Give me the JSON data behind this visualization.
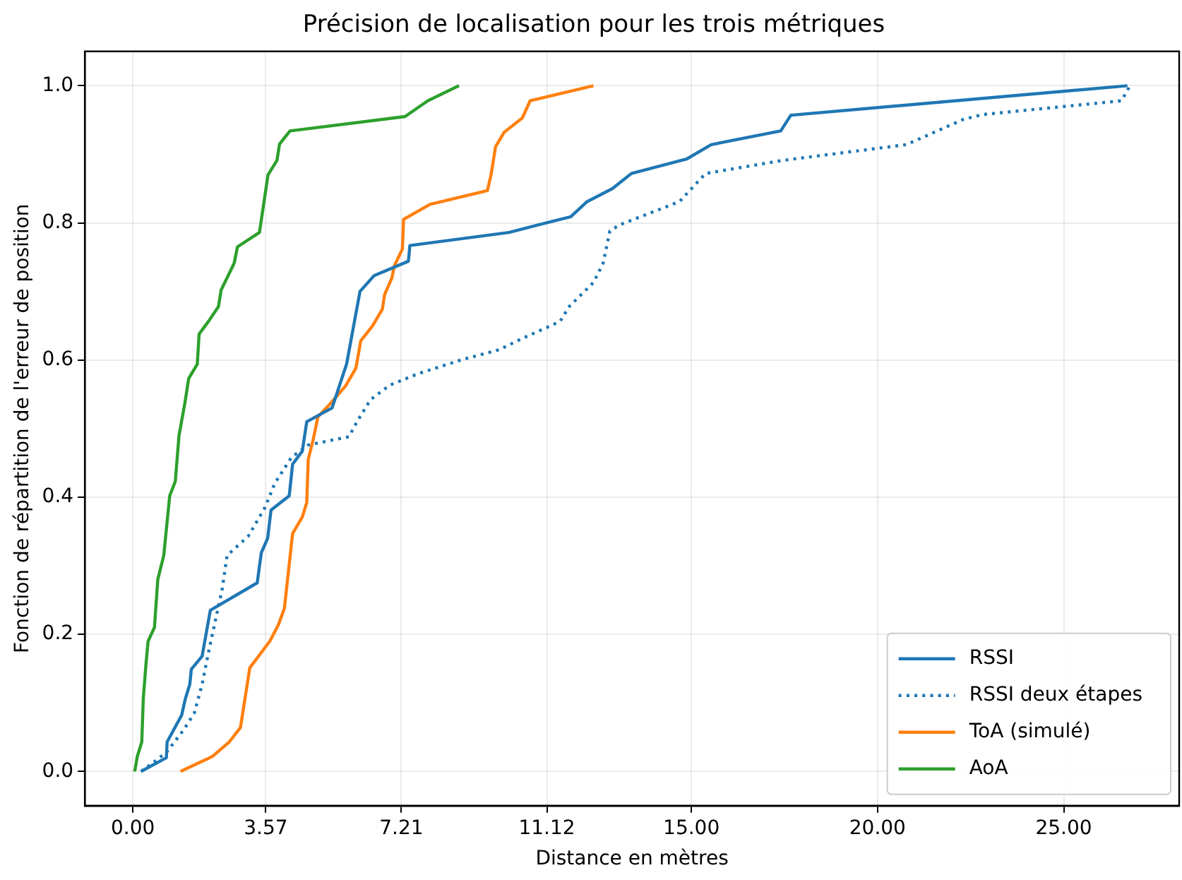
{
  "chart_data": {
    "type": "line",
    "title": "Précision de localisation pour les trois métriques",
    "xlabel": "Distance en mètres",
    "ylabel": "Fonction de répartition de l'erreur de position",
    "xlim": [
      -1.29,
      28.1
    ],
    "ylim": [
      -0.05,
      1.05
    ],
    "xticks": [
      {
        "value": 0,
        "label": "0.00"
      },
      3.57,
      7.21,
      11.12,
      {
        "value": 15,
        "label": "15.00"
      },
      {
        "value": 20,
        "label": "20.00"
      },
      {
        "value": 25,
        "label": "25.00"
      }
    ],
    "yticks": [
      {
        "value": 0,
        "label": "0.0"
      },
      0.2,
      0.4,
      0.6,
      0.8,
      {
        "value": 1,
        "label": "1.0"
      }
    ],
    "grid": true,
    "legend": "bottom right",
    "marker": "none",
    "series": [
      {
        "name": "RSSI",
        "color": "#1f77b4",
        "line_style": "solid",
        "x": [
          0.22,
          0.9,
          0.92,
          1.31,
          1.41,
          1.53,
          1.57,
          1.86,
          2.08,
          3.34,
          3.45,
          3.62,
          3.71,
          4.2,
          4.29,
          4.55,
          4.67,
          5.35,
          5.74,
          6.1,
          6.48,
          7.4,
          7.44,
          10.1,
          11.76,
          12.2,
          12.88,
          13.39,
          14.87,
          15.53,
          17.4,
          17.67,
          26.71
        ],
        "values": [
          0,
          0.02,
          0.043,
          0.082,
          0.106,
          0.127,
          0.149,
          0.168,
          0.235,
          0.275,
          0.319,
          0.34,
          0.381,
          0.402,
          0.448,
          0.467,
          0.51,
          0.53,
          0.594,
          0.7,
          0.723,
          0.744,
          0.767,
          0.786,
          0.809,
          0.831,
          0.85,
          0.872,
          0.893,
          0.914,
          0.934,
          0.957,
          1.0
        ]
      },
      {
        "name": "RSSI deux étapes",
        "color": "#1f77b4",
        "line_style": "dotted",
        "x": [
          0.22,
          0.6,
          0.92,
          1.37,
          1.65,
          1.86,
          2.04,
          2.4,
          2.53,
          3.1,
          3.55,
          3.81,
          4.26,
          4.71,
          5.8,
          6.02,
          6.38,
          6.89,
          7.66,
          8.81,
          9.84,
          10.48,
          11.47,
          11.72,
          12.37,
          12.63,
          12.81,
          13.07,
          14.68,
          15.38,
          17.44,
          20.77,
          22.31,
          22.83,
          26.55,
          26.78
        ],
        "values": [
          0,
          0.015,
          0.029,
          0.061,
          0.085,
          0.127,
          0.176,
          0.266,
          0.315,
          0.343,
          0.385,
          0.42,
          0.458,
          0.476,
          0.488,
          0.51,
          0.542,
          0.563,
          0.58,
          0.6,
          0.615,
          0.632,
          0.656,
          0.678,
          0.713,
          0.741,
          0.788,
          0.797,
          0.831,
          0.872,
          0.891,
          0.914,
          0.951,
          0.958,
          0.978,
          1.0
        ]
      },
      {
        "name": "ToA (simulé)",
        "color": "#ff7f0e",
        "line_style": "solid",
        "x": [
          1.28,
          2.14,
          2.59,
          2.89,
          3.14,
          3.68,
          3.91,
          4.07,
          4.29,
          4.55,
          4.67,
          4.71,
          4.84,
          4.97,
          5.33,
          5.71,
          5.99,
          6.12,
          6.44,
          6.7,
          6.76,
          6.96,
          7.02,
          7.24,
          7.27,
          7.98,
          9.52,
          9.62,
          9.74,
          9.97,
          10.46,
          10.67,
          12.37
        ],
        "values": [
          0,
          0.022,
          0.043,
          0.064,
          0.151,
          0.19,
          0.214,
          0.238,
          0.347,
          0.371,
          0.392,
          0.455,
          0.483,
          0.517,
          0.538,
          0.562,
          0.588,
          0.628,
          0.65,
          0.674,
          0.695,
          0.72,
          0.737,
          0.762,
          0.805,
          0.827,
          0.847,
          0.87,
          0.911,
          0.932,
          0.953,
          0.978,
          1.0
        ]
      },
      {
        "name": "AoA",
        "color": "#2ca02c",
        "line_style": "solid",
        "x": [
          0.05,
          0.12,
          0.24,
          0.28,
          0.35,
          0.41,
          0.58,
          0.67,
          0.83,
          0.99,
          1.14,
          1.24,
          1.4,
          1.5,
          1.73,
          1.78,
          2.04,
          2.3,
          2.37,
          2.72,
          2.81,
          3.4,
          3.63,
          3.87,
          3.94,
          4.22,
          7.31,
          7.92,
          8.76
        ],
        "values": [
          0,
          0.022,
          0.043,
          0.106,
          0.155,
          0.19,
          0.21,
          0.28,
          0.315,
          0.402,
          0.423,
          0.49,
          0.538,
          0.573,
          0.594,
          0.638,
          0.657,
          0.678,
          0.702,
          0.741,
          0.765,
          0.786,
          0.87,
          0.891,
          0.915,
          0.934,
          0.955,
          0.978,
          1.0
        ]
      }
    ]
  }
}
